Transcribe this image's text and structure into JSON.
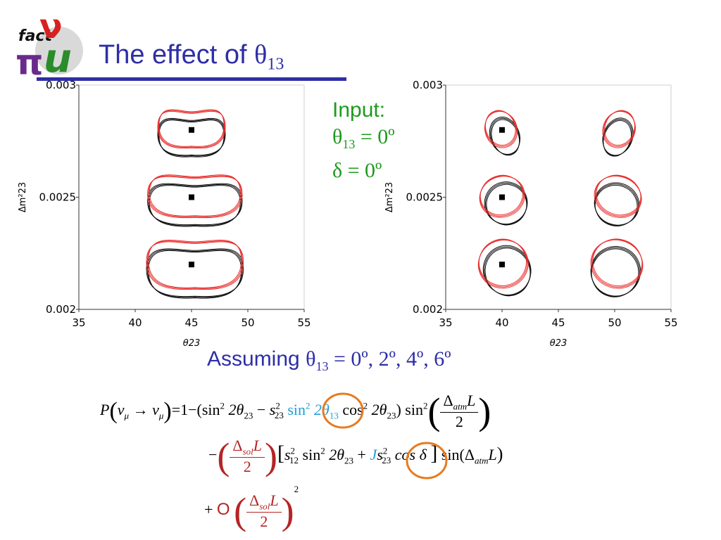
{
  "header": {
    "title_text": "The effect of ",
    "title_symbol": "θ",
    "title_subscript": "13",
    "logo_text_fact": "fact",
    "logo_text_nu": "ν",
    "logo_text_pi": "π",
    "logo_text_m": "u"
  },
  "input_box": {
    "heading": "Input:",
    "theta_symbol": "θ",
    "theta_sub": "13",
    "theta_value": " = 0º",
    "delta_line": "δ = 0º"
  },
  "assumption": {
    "text": "Assuming ",
    "symbol": "θ",
    "sub": "13",
    "values": " =  0º, 2º, 4º, 6º"
  },
  "equation": {
    "line1_lhs": "P",
    "line1_nu_mu": "ν",
    "line1_mu": "μ",
    "line1_arrow": "→",
    "line1_eq": "=1−(sin",
    "line1_two": "2",
    "line1_theta23": "2θ",
    "line1_sub23": "23",
    "line1_minus": "−",
    "s": "s",
    "s_sub": "23",
    "s_sup": "2",
    "sin": "sin",
    "sin13": "2θ",
    "sub13": "13",
    "cos": "cos",
    "cos_theta": "2θ",
    "close_sin2": ") sin",
    "sup2": "2",
    "delta_atm": "Δ",
    "atm": "atm",
    "L": "L",
    "den_2": "2",
    "line2_minus": "−",
    "delta_sol": "Δ",
    "sol": "sol",
    "s12": "s",
    "s12_sub": "12",
    "plus": "+",
    "J": "J",
    "cos_delta": "cos δ",
    "sin_paren": "sin(Δ",
    "line3_plus": "+",
    "line3_O": "O",
    "power2": "2"
  },
  "chart_data": [
    {
      "type": "scatter",
      "title": "",
      "xlabel": "θ23",
      "ylabel": "Δm²23",
      "xlim": [
        35,
        55
      ],
      "ylim": [
        0.002,
        0.003
      ],
      "x_ticks": [
        35,
        40,
        45,
        50,
        55
      ],
      "x_tick_labels": [
        "35",
        "40",
        "45",
        "50",
        "55"
      ],
      "y_ticks": [
        0.002,
        0.0025,
        0.003
      ],
      "y_tick_labels": [
        "0.002",
        "0.0025",
        "0.003"
      ],
      "grid": false,
      "input_points": [
        {
          "x": 45,
          "y": 0.0028
        },
        {
          "x": 45,
          "y": 0.0025
        },
        {
          "x": 45,
          "y": 0.0022
        }
      ],
      "contour_groups": [
        {
          "cx": 45,
          "cy": 0.0028,
          "half_width": 3.0,
          "upper_lobe": 8e-05,
          "lower_lobe": 8e-05
        },
        {
          "cx": 45.3,
          "cy": 0.0025,
          "half_width": 4.2,
          "upper_lobe": 9e-05,
          "lower_lobe": 9e-05
        },
        {
          "cx": 45.3,
          "cy": 0.0022,
          "half_width": 4.3,
          "upper_lobe": 0.0001,
          "lower_lobe": 0.00011
        }
      ],
      "series": [
        {
          "color": "#e8302e"
        },
        {
          "color": "#111111"
        }
      ]
    },
    {
      "type": "scatter",
      "title": "",
      "xlabel": "θ23",
      "ylabel": "Δm²23",
      "xlim": [
        35,
        55
      ],
      "ylim": [
        0.002,
        0.003
      ],
      "x_ticks": [
        35,
        40,
        45,
        50,
        55
      ],
      "x_tick_labels": [
        "35",
        "40",
        "45",
        "50",
        "55"
      ],
      "y_ticks": [
        0.002,
        0.0025,
        0.003
      ],
      "y_tick_labels": [
        "0.002",
        "0.0025",
        "0.003"
      ],
      "grid": false,
      "input_points": [
        {
          "x": 40,
          "y": 0.0028
        },
        {
          "x": 40,
          "y": 0.0025
        },
        {
          "x": 40,
          "y": 0.0022
        }
      ],
      "contour_groups": [
        {
          "cx": 40,
          "cy": 0.00279,
          "half_width": 1.3,
          "half_height": 0.0001,
          "tilt": -0.35
        },
        {
          "cx": 50.3,
          "cy": 0.00279,
          "half_width": 1.3,
          "half_height": 0.0001,
          "tilt": 0.35
        },
        {
          "cx": 40.1,
          "cy": 0.00249,
          "half_width": 1.9,
          "half_height": 0.00011,
          "tilt": -0.35
        },
        {
          "cx": 50.2,
          "cy": 0.00249,
          "half_width": 2.0,
          "half_height": 0.00011,
          "tilt": 0.35
        },
        {
          "cx": 40.2,
          "cy": 0.00219,
          "half_width": 2.1,
          "half_height": 0.00013,
          "tilt": -0.35
        },
        {
          "cx": 50.1,
          "cy": 0.00219,
          "half_width": 2.2,
          "half_height": 0.00013,
          "tilt": 0.35
        }
      ],
      "series": [
        {
          "color": "#e8302e"
        },
        {
          "color": "#111111"
        }
      ]
    }
  ]
}
